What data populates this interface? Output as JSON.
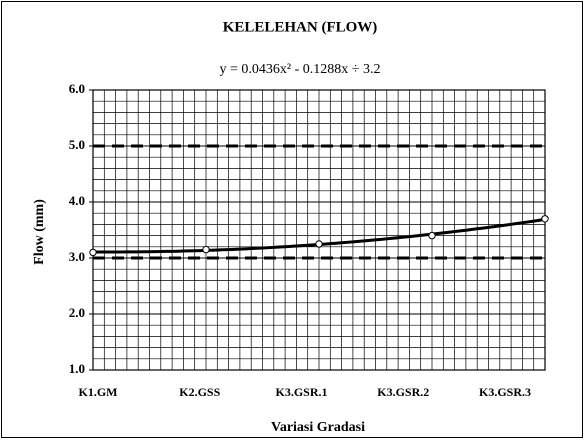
{
  "chart_data": {
    "type": "line",
    "title": "KELELEHAN (FLOW)",
    "subtitle": "y = 0.0436x² - 0.1288x ÷ 3.2",
    "y_label": "Flow (mm)",
    "x_label": "Variasi Gradasi",
    "categories": [
      "K1.GM",
      "K2.GSS",
      "K3.GSR.1",
      "K3.GSR.2",
      "K3.GSR.3"
    ],
    "values": [
      3.1,
      3.15,
      3.25,
      3.4,
      3.7
    ],
    "color": "#000000",
    "trendline": "quadratic",
    "hlines": [
      3,
      5
    ],
    "ylim": [
      1,
      6
    ],
    "yticks": [
      {
        "value": 1,
        "label": "1.0"
      },
      {
        "value": 2,
        "label": "2.0"
      },
      {
        "value": 3,
        "label": "3.0"
      },
      {
        "value": 4,
        "label": "4.0"
      },
      {
        "value": 5,
        "label": "5.0"
      },
      {
        "value": 6,
        "label": "6.0"
      }
    ],
    "grid": true
  }
}
